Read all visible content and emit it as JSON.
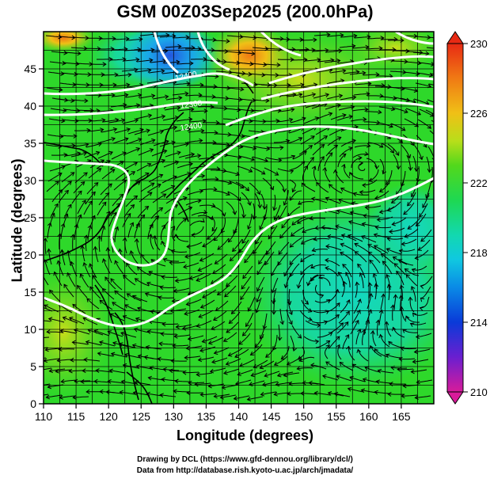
{
  "title": "GSM 00Z03Sep2025 (200.0hPa)",
  "axes": {
    "xlabel": "Longitude (degrees)",
    "ylabel": "Latitude  (degrees)",
    "x_ticks": [
      "110",
      "115",
      "120",
      "125",
      "130",
      "135",
      "140",
      "145",
      "150",
      "155",
      "160",
      "165"
    ],
    "y_ticks": [
      "0",
      "5",
      "10",
      "15",
      "20",
      "25",
      "30",
      "35",
      "40",
      "45"
    ]
  },
  "colorbar": {
    "ticks": [
      "210",
      "214",
      "218",
      "222",
      "226",
      "230"
    ],
    "colors": [
      "#d81b9a",
      "#5a1fd0",
      "#0a3ad8",
      "#0aa3e6",
      "#12d8c8",
      "#1ed86a",
      "#22d21e",
      "#7ad81c",
      "#d6de1a",
      "#f0a016",
      "#f06a14",
      "#e82a14"
    ]
  },
  "contour_labels": [
    "12400",
    "12300",
    "12400"
  ],
  "credits": {
    "line1": "Drawing by DCL (https://www.gfd-dennou.org/library/dcl/)",
    "line2": "Data from http://database.rish.kyoto-u.ac.jp/arch/jmadata/"
  },
  "chart_data": {
    "type": "map",
    "title": "GSM 00Z03Sep2025 (200.0hPa)",
    "xlabel": "Longitude (degrees)",
    "ylabel": "Latitude  (degrees)",
    "xlim": [
      110,
      170
    ],
    "ylim": [
      0,
      50
    ],
    "colorbar_range": [
      210,
      230
    ],
    "geopotential_contours_m": [
      12300,
      12400
    ]
  }
}
